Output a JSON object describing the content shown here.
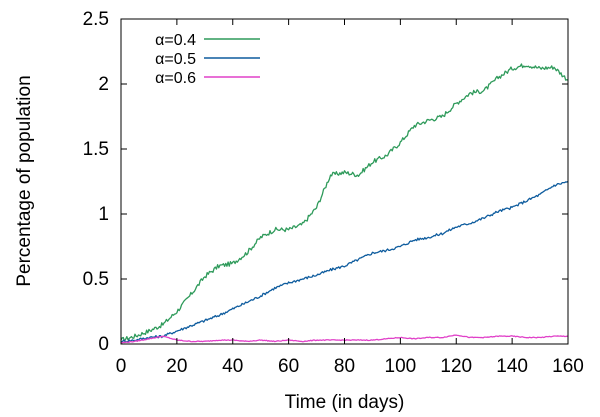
{
  "chart_data": {
    "type": "line",
    "title": "",
    "xlabel": "Time (in days)",
    "ylabel": "Percentage of population",
    "xlim": [
      0,
      160
    ],
    "ylim": [
      0,
      2.5
    ],
    "xticks": [
      "0",
      "20",
      "40",
      "60",
      "80",
      "100",
      "120",
      "140",
      "160"
    ],
    "yticks": [
      "0",
      "0.5",
      "1",
      "1.5",
      "2",
      "2.5"
    ],
    "grid": false,
    "legend_position": "top-left",
    "x": [
      0,
      5,
      10,
      15,
      20,
      25,
      30,
      35,
      40,
      45,
      50,
      55,
      60,
      65,
      70,
      75,
      80,
      85,
      90,
      95,
      100,
      105,
      110,
      115,
      120,
      125,
      130,
      135,
      140,
      145,
      150,
      155,
      160
    ],
    "series": [
      {
        "name": "α=0.4",
        "color": "#2e9a5a",
        "values": [
          0.03,
          0.06,
          0.1,
          0.15,
          0.25,
          0.38,
          0.52,
          0.6,
          0.62,
          0.7,
          0.82,
          0.88,
          0.88,
          0.92,
          1.05,
          1.3,
          1.32,
          1.3,
          1.4,
          1.45,
          1.55,
          1.68,
          1.72,
          1.75,
          1.85,
          1.93,
          1.95,
          2.05,
          2.12,
          2.15,
          2.12,
          2.13,
          2.03
        ]
      },
      {
        "name": "α=0.5",
        "color": "#0e5c9e",
        "values": [
          0.02,
          0.03,
          0.05,
          0.06,
          0.1,
          0.14,
          0.18,
          0.22,
          0.27,
          0.32,
          0.37,
          0.43,
          0.47,
          0.5,
          0.53,
          0.57,
          0.6,
          0.65,
          0.7,
          0.72,
          0.75,
          0.8,
          0.82,
          0.85,
          0.9,
          0.93,
          0.97,
          1.02,
          1.05,
          1.1,
          1.15,
          1.22,
          1.25
        ]
      },
      {
        "name": "α=0.6",
        "color": "#e040c8",
        "values": [
          0.01,
          0.02,
          0.04,
          0.06,
          0.03,
          0.02,
          0.02,
          0.03,
          0.03,
          0.02,
          0.03,
          0.02,
          0.03,
          0.02,
          0.03,
          0.03,
          0.03,
          0.03,
          0.03,
          0.04,
          0.05,
          0.04,
          0.05,
          0.05,
          0.07,
          0.05,
          0.05,
          0.06,
          0.06,
          0.05,
          0.05,
          0.06,
          0.06
        ]
      }
    ]
  }
}
